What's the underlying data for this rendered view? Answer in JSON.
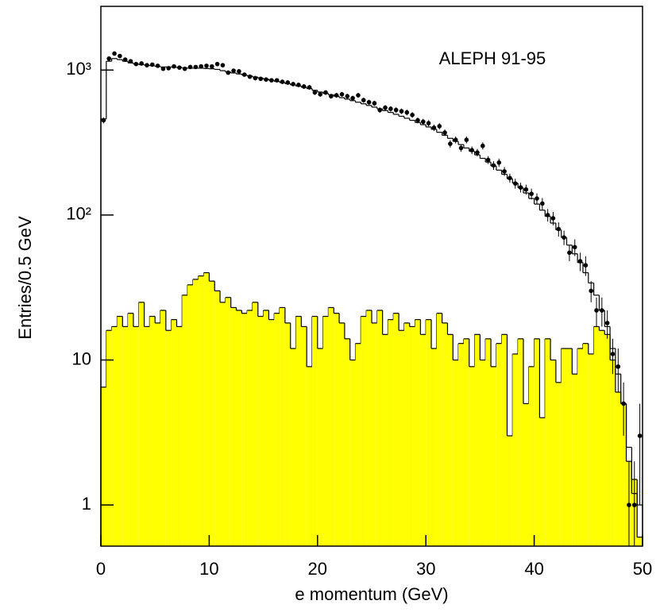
{
  "chart_data": {
    "type": "histogram",
    "annotation": "ALEPH 91-95",
    "xlabel": "e momentum (GeV)",
    "ylabel": "Entries/0.5 GeV",
    "bins": [
      0,
      0.5,
      1,
      1.5,
      2,
      2.5,
      3,
      3.5,
      4,
      4.5,
      5,
      5.5,
      6,
      6.5,
      7,
      7.5,
      8,
      8.5,
      9,
      9.5,
      10,
      10.5,
      11,
      11.5,
      12,
      12.5,
      13,
      13.5,
      14,
      14.5,
      15,
      15.5,
      16,
      16.5,
      17,
      17.5,
      18,
      18.5,
      19,
      19.5,
      20,
      20.5,
      21,
      21.5,
      22,
      22.5,
      23,
      23.5,
      24,
      24.5,
      25,
      25.5,
      26,
      26.5,
      27,
      27.5,
      28,
      28.5,
      29,
      29.5,
      30,
      30.5,
      31,
      31.5,
      32,
      32.5,
      33,
      33.5,
      34,
      34.5,
      35,
      35.5,
      36,
      36.5,
      37,
      37.5,
      38,
      38.5,
      39,
      39.5,
      40,
      40.5,
      41,
      41.5,
      42,
      42.5,
      43,
      43.5,
      44,
      44.5,
      45,
      45.5,
      46,
      46.5,
      47,
      47.5,
      48,
      48.5,
      49,
      49.5,
      50
    ],
    "xlim": [
      0,
      50
    ],
    "xticks": [
      0,
      10,
      20,
      30,
      40,
      50
    ],
    "ylim": [
      0.52,
      2750
    ],
    "log_y": true,
    "yticks": [
      1,
      10,
      {
        "value": 100,
        "label": "10²"
      },
      {
        "value": 1000,
        "label": "10³"
      }
    ],
    "series": [
      {
        "style": "filled",
        "color": "#ffff00",
        "values": [
          6.5,
          16,
          17,
          20,
          17,
          21,
          17,
          25,
          17,
          20,
          18,
          22,
          16,
          19,
          17,
          28,
          33,
          36,
          38,
          40,
          35,
          30,
          25,
          27,
          23,
          22,
          21,
          22,
          25,
          20,
          22,
          19,
          21,
          23,
          18,
          12,
          20,
          17,
          9,
          20,
          12,
          20,
          23,
          21,
          18,
          14,
          10,
          13,
          20,
          22,
          18,
          22,
          15,
          19,
          21,
          16,
          18,
          17,
          19,
          15,
          19,
          12,
          21,
          18,
          15,
          10,
          13,
          14,
          9,
          15,
          10,
          14,
          9,
          13,
          15,
          3,
          11,
          14,
          5,
          9,
          14,
          4,
          14,
          10,
          7,
          12,
          12,
          8,
          12,
          13,
          11,
          17,
          16,
          15,
          10,
          6,
          5,
          2,
          1.5,
          0.6
        ]
      },
      {
        "style": "step",
        "color": "#000000",
        "values": [
          460,
          1150,
          1200,
          1180,
          1150,
          1120,
          1100,
          1090,
          1080,
          1070,
          1060,
          1050,
          1050,
          1045,
          1040,
          1035,
          1030,
          1030,
          1030,
          1025,
          1020,
          1010,
          990,
          970,
          955,
          940,
          925,
          910,
          895,
          880,
          865,
          850,
          835,
          820,
          805,
          790,
          775,
          760,
          745,
          725,
          705,
          690,
          675,
          660,
          645,
          630,
          615,
          600,
          585,
          570,
          555,
          540,
          525,
          510,
          495,
          480,
          465,
          450,
          435,
          420,
          405,
          390,
          372,
          355,
          338,
          322,
          306,
          290,
          275,
          260,
          246,
          232,
          218,
          204,
          191,
          178,
          166,
          154,
          142,
          130,
          119,
          108,
          98,
          88,
          79,
          70,
          62,
          54,
          47,
          40,
          34,
          28,
          22,
          17,
          12,
          8,
          5,
          2.5,
          1.2,
          1
        ]
      },
      {
        "style": "points",
        "color": "#000000",
        "values": [
          450,
          1200,
          1300,
          1250,
          1180,
          1150,
          1100,
          1110,
          1080,
          1090,
          1070,
          1020,
          1030,
          1060,
          1040,
          1020,
          1050,
          1050,
          1060,
          1070,
          1060,
          1100,
          1080,
          960,
          990,
          980,
          930,
          900,
          880,
          870,
          860,
          850,
          850,
          830,
          820,
          800,
          790,
          770,
          760,
          700,
          680,
          700,
          660,
          670,
          680,
          660,
          640,
          670,
          620,
          600,
          590,
          530,
          550,
          540,
          530,
          520,
          510,
          490,
          450,
          440,
          430,
          400,
          410,
          370,
          310,
          330,
          290,
          330,
          280,
          270,
          300,
          240,
          220,
          230,
          200,
          180,
          165,
          155,
          150,
          140,
          130,
          120,
          100,
          95,
          80,
          70,
          55,
          60,
          48,
          45,
          30,
          22,
          22,
          18,
          11,
          9,
          5,
          1,
          1,
          3
        ],
        "errors": [
          21,
          35,
          36,
          35,
          34,
          34,
          33,
          33,
          33,
          33,
          33,
          32,
          32,
          33,
          32,
          32,
          32,
          32,
          33,
          33,
          33,
          33,
          33,
          31,
          31,
          31,
          30,
          30,
          30,
          29,
          29,
          29,
          29,
          29,
          29,
          28,
          28,
          28,
          28,
          26,
          26,
          26,
          26,
          26,
          26,
          26,
          25,
          26,
          25,
          24,
          24,
          23,
          23,
          23,
          23,
          23,
          23,
          22,
          21,
          21,
          21,
          20,
          20,
          19,
          18,
          18,
          17,
          18,
          17,
          16,
          17,
          15,
          15,
          15,
          14,
          13,
          13,
          12,
          12,
          12,
          11,
          11,
          10,
          10,
          9,
          8,
          7,
          8,
          7,
          7,
          5,
          5,
          5,
          4,
          3,
          3,
          2,
          1,
          1,
          2
        ]
      }
    ]
  }
}
